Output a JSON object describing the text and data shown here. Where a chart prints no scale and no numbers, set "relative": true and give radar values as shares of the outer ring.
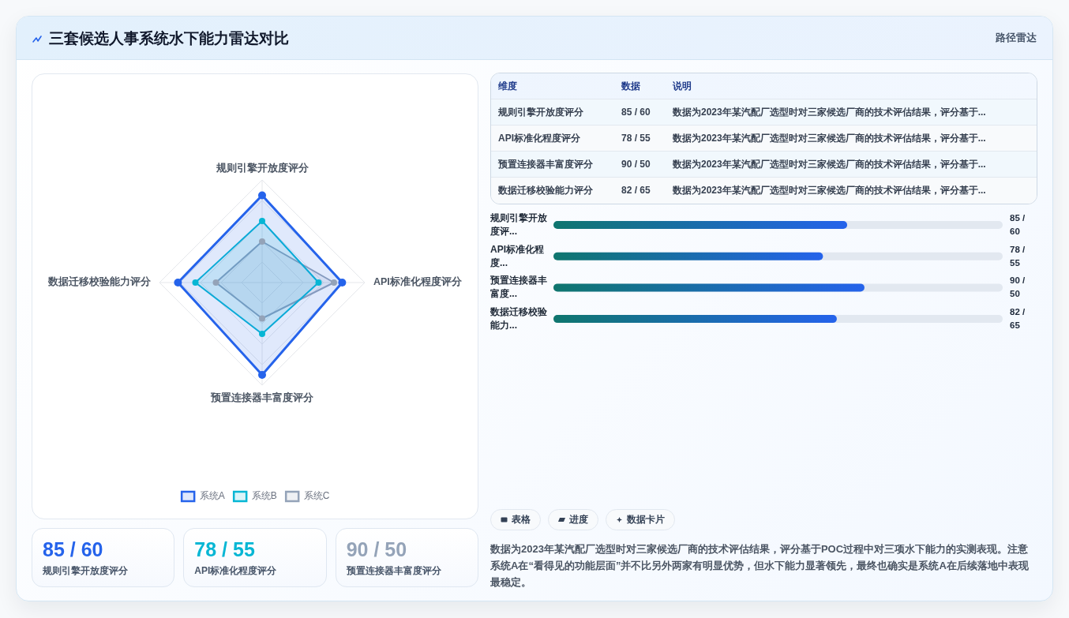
{
  "chart_data": [
    {
      "type": "other",
      "title": "三套候选人事系统水下能力雷达对比",
      "subtitle": "路径雷达"
    },
    {
      "type": "radar",
      "categories": [
        "规则引擎开放度评分",
        "API标准化程度评分",
        "预置连接器丰富度评分",
        "数据迁移校验能力评分"
      ],
      "relative": true,
      "grid": true,
      "legend": "bottom",
      "marker": "circle",
      "series": [
        {
          "name": "系统A",
          "color": "#2563eb",
          "values": [
            0.85,
            0.78,
            0.9,
            0.82
          ]
        },
        {
          "name": "系统B",
          "color": "#06b6d4",
          "values": [
            0.6,
            0.55,
            0.5,
            0.65
          ]
        },
        {
          "name": "系统C",
          "color": "#94a3b8",
          "values": [
            0.4,
            0.7,
            0.35,
            0.45
          ]
        }
      ]
    },
    {
      "type": "other",
      "annotations": [
        "85 / 60",
        "规则引擎开放度评分",
        "78 / 55",
        "API标准化程度评分",
        "90 / 50",
        "预置连接器丰富度评分"
      ],
      "colors": [
        "#2563eb",
        "#06b6d4",
        "#94a3b8"
      ]
    },
    {
      "type": "other",
      "annotations": [
        "维度",
        "数据",
        "说明",
        "规则引擎开放度评分",
        "85 / 60",
        "数据为2023年某汽配厂选型时对三家候选厂商的技术评估结果，评分基于...",
        "API标准化程度评分",
        "78 / 55",
        "数据为2023年某汽配厂选型时对三家候选厂商的技术评估结果，评分基于...",
        "预置连接器丰富度评分",
        "90 / 50",
        "数据为2023年某汽配厂选型时对三家候选厂商的技术评估结果，评分基于...",
        "数据迁移校验能力评分",
        "82 / 65",
        "数据为2023年某汽配厂选型时对三家候选厂商的技术评估结果，评分基于..."
      ]
    },
    {
      "type": "bar",
      "orientation": "horizontal",
      "categories": [
        "规则引擎开放度评...",
        "API标准化程度...",
        "预置连接器丰富度...",
        "数据迁移校验能力..."
      ],
      "values": [
        85,
        78,
        90,
        82
      ],
      "value_labels": [
        "85 / 60",
        "78 / 55",
        "90 / 50",
        "82 / 65"
      ],
      "xlim": [
        0,
        130
      ],
      "tick_labels": "y",
      "color": "#2563eb"
    },
    {
      "type": "other",
      "annotations": [
        "表格",
        "进度",
        "数据卡片",
        "数据为2023年某汽配厂选型时对三家候选厂商的技术评估结果，评分基于POC过程中对三项水下能力的实测表现。注意系统A在“看得见的功能层面”并不比另外两家有明显优势，但水下能力显著领先，最终也确实是系统A在后续落地中表现最稳定。"
      ]
    }
  ]
}
